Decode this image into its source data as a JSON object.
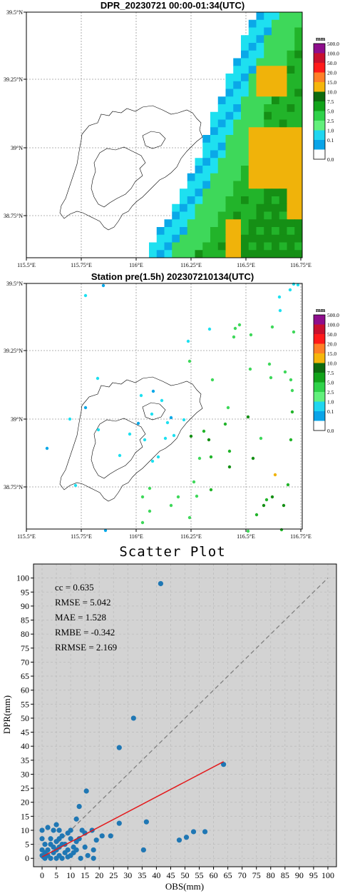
{
  "map1": {
    "title": "DPR_20230721 00:00-01:34(UTC)",
    "lon_ticks": [
      "115.5°E",
      "115.75°E",
      "116°E",
      "116.25°E",
      "116.5°E",
      "116.75°E"
    ],
    "lat_ticks": [
      "39.5°N",
      "39.25°N",
      "39°N",
      "38.75°N"
    ],
    "colorbar_unit": "mm",
    "colorbar_labels": [
      "500.0",
      "100.0",
      "50.0",
      "20.0",
      "15.0",
      "10.0",
      "7.5",
      "5.0",
      "2.5",
      "1.0",
      "0.1",
      "0.0"
    ]
  },
  "map2": {
    "title": "Station pre(1.5h) 202307210134(UTC)",
    "lon_ticks": [
      "115.5°E",
      "115.75°E",
      "116°E",
      "116.25°E",
      "116.5°E",
      "116.75°E"
    ],
    "lat_ticks": [
      "39.5°N",
      "39.25°N",
      "39°N",
      "38.75°N"
    ],
    "colorbar_unit": "mm",
    "colorbar_labels": [
      "500.0",
      "100.0",
      "50.0",
      "20.0",
      "15.0",
      "10.0",
      "7.5",
      "5.0",
      "2.5",
      "1.0",
      "0.1",
      "0.0"
    ]
  },
  "colorbar_colors": [
    "#8e0e8c",
    "#c8102e",
    "#ff1a1a",
    "#ff7f27",
    "#f5b60c",
    "#0e6b0e",
    "#12a31a",
    "#2fd24a",
    "#62f07c",
    "#1fd6f0",
    "#0aa4e8",
    "#ffffff"
  ],
  "map_colors": {
    "dark_green": "#158f15",
    "green": "#22b42a",
    "light_green": "#3ed85a",
    "yellow": "#f0b30a",
    "cyan": "#1ee0f0",
    "blue": "#0aa8e8",
    "white": "#ffffff"
  },
  "chart_data": {
    "type": "scatter",
    "title": "Scatter Plot",
    "xlabel": "OBS(mm)",
    "ylabel": "DPR(mm)",
    "xlim": [
      -3,
      103
    ],
    "ylim": [
      -3,
      105
    ],
    "xticks": [
      0,
      5,
      10,
      15,
      20,
      25,
      30,
      35,
      40,
      45,
      50,
      55,
      60,
      65,
      70,
      75,
      80,
      85,
      90,
      95,
      100
    ],
    "yticks": [
      0,
      5,
      10,
      15,
      20,
      25,
      30,
      35,
      40,
      45,
      50,
      55,
      60,
      65,
      70,
      75,
      80,
      85,
      90,
      95,
      100
    ],
    "grid": true,
    "stats": [
      "cc = 0.635",
      "RMSE = 5.042",
      "MAE = 1.528",
      "RMBE = -0.342",
      "RRMSE = 2.169"
    ],
    "point_color": "#1f77b4",
    "fit_line": {
      "color": "#e31a1c",
      "x": [
        0,
        63.5
      ],
      "y": [
        0.5,
        34.5
      ]
    },
    "identity_line": {
      "color": "#808080",
      "x": [
        0,
        100
      ],
      "y": [
        0,
        100
      ]
    },
    "points": [
      [
        41.5,
        98
      ],
      [
        32,
        50
      ],
      [
        27,
        39.5
      ],
      [
        63.5,
        33.5
      ],
      [
        15.5,
        24
      ],
      [
        36.5,
        13
      ],
      [
        27,
        12.5
      ],
      [
        13,
        18.5
      ],
      [
        12,
        14
      ],
      [
        10,
        10
      ],
      [
        14,
        10
      ],
      [
        17.5,
        10
      ],
      [
        21,
        8
      ],
      [
        24,
        8
      ],
      [
        19,
        6.5
      ],
      [
        10,
        7
      ],
      [
        12,
        6
      ],
      [
        15,
        4
      ],
      [
        9,
        3
      ],
      [
        18,
        3
      ],
      [
        35.5,
        3
      ],
      [
        18,
        0
      ],
      [
        13.5,
        0
      ],
      [
        7,
        0
      ],
      [
        3,
        0
      ],
      [
        1,
        0
      ],
      [
        0.5,
        0.5
      ],
      [
        2,
        1
      ],
      [
        4,
        2
      ],
      [
        5,
        3
      ],
      [
        6,
        4
      ],
      [
        8,
        5
      ],
      [
        5,
        6
      ],
      [
        3,
        7
      ],
      [
        7,
        8
      ],
      [
        9,
        9
      ],
      [
        4,
        10
      ],
      [
        2,
        11
      ],
      [
        5,
        12
      ],
      [
        11,
        4
      ],
      [
        0,
        3
      ],
      [
        1,
        5
      ],
      [
        6,
        1
      ],
      [
        9,
        0.5
      ],
      [
        57,
        9.5
      ],
      [
        53,
        9.5
      ],
      [
        50.5,
        7.5
      ],
      [
        48,
        6.5
      ],
      [
        0,
        10
      ],
      [
        0,
        7
      ],
      [
        11,
        2
      ],
      [
        7,
        5
      ],
      [
        3,
        5
      ],
      [
        1,
        2
      ],
      [
        8,
        2
      ],
      [
        10,
        1
      ],
      [
        12,
        3
      ],
      [
        4,
        4
      ],
      [
        6,
        7
      ],
      [
        2,
        3
      ],
      [
        0,
        1
      ],
      [
        5,
        0
      ],
      [
        16,
        1
      ],
      [
        13,
        7
      ],
      [
        15,
        9
      ],
      [
        6,
        10
      ]
    ]
  }
}
